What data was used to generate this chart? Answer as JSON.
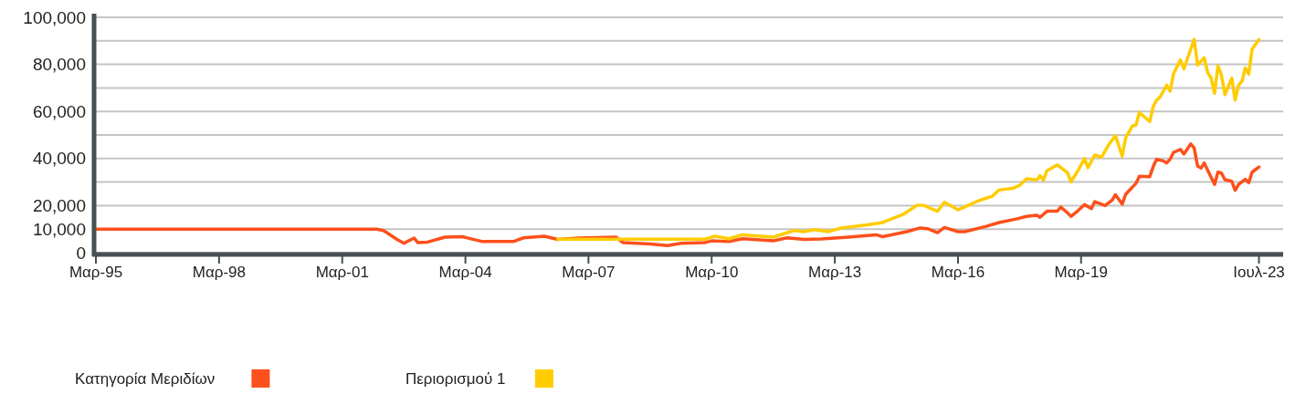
{
  "chart_data": {
    "type": "line",
    "xlim": [
      "1995-03",
      "2024-02"
    ],
    "xticks": [
      {
        "value": "1995-03",
        "label": "Μαρ-95"
      },
      {
        "value": "1998-03",
        "label": "Μαρ-98"
      },
      {
        "value": "2001-03",
        "label": "Μαρ-01"
      },
      {
        "value": "2004-03",
        "label": "Μαρ-04"
      },
      {
        "value": "2007-03",
        "label": "Μαρ-07"
      },
      {
        "value": "2010-03",
        "label": "Μαρ-10"
      },
      {
        "value": "2013-03",
        "label": "Μαρ-13"
      },
      {
        "value": "2016-03",
        "label": "Μαρ-16"
      },
      {
        "value": "2019-03",
        "label": "Μαρ-19"
      },
      {
        "value": "2023-07",
        "label": "Ιουλ-23"
      }
    ],
    "ylim": [
      0,
      100000
    ],
    "yticks": [
      {
        "value": 0,
        "label": "0"
      },
      {
        "value": 10000,
        "label": "10,000"
      },
      {
        "value": 20000,
        "label": "20,000"
      },
      {
        "value": 30000,
        "label": null
      },
      {
        "value": 40000,
        "label": "40,000"
      },
      {
        "value": 50000,
        "label": null
      },
      {
        "value": 60000,
        "label": "60,000"
      },
      {
        "value": 70000,
        "label": null
      },
      {
        "value": 80000,
        "label": "80,000"
      },
      {
        "value": 90000,
        "label": null
      },
      {
        "value": 100000,
        "label": "100,000"
      }
    ],
    "grid": "y",
    "legend": "bottom left",
    "marker": "none",
    "line_style": "solid",
    "series": [
      {
        "name": "Κατηγορία Μεριδίων",
        "color": "#fc501c",
        "x": [
          "1995-03",
          "2002-01",
          "2002-03",
          "2002-04",
          "2002-07",
          "2002-09",
          "2002-12",
          "2003-01",
          "2003-04",
          "2003-09",
          "2004-02",
          "2004-08",
          "2005-05",
          "2005-08",
          "2006-02",
          "2006-06",
          "2006-12",
          "2007-11",
          "2008-01",
          "2008-09",
          "2009-02",
          "2009-06",
          "2010-01",
          "2010-03",
          "2010-08",
          "2010-12",
          "2011-09",
          "2012-01",
          "2012-06",
          "2012-11",
          "2013-07",
          "2014-03",
          "2014-05",
          "2014-12",
          "2015-04",
          "2015-06",
          "2015-09",
          "2015-11",
          "2016-03",
          "2016-05",
          "2016-11",
          "2017-03",
          "2017-08",
          "2017-11",
          "2018-02",
          "2018-03",
          "2018-05",
          "2018-08",
          "2018-09",
          "2018-11",
          "2018-12",
          "2019-02",
          "2019-04",
          "2019-06",
          "2019-07",
          "2019-10",
          "2019-12",
          "2020-01",
          "2020-03",
          "2020-04",
          "2020-07",
          "2020-08",
          "2020-11",
          "2020-12",
          "2021-01",
          "2021-03",
          "2021-04",
          "2021-05",
          "2021-06",
          "2021-08",
          "2021-09",
          "2021-11",
          "2021-12",
          "2022-01",
          "2022-02",
          "2022-03",
          "2022-06",
          "2022-07",
          "2022-08",
          "2022-09",
          "2022-11",
          "2022-12",
          "2023-01",
          "2023-03",
          "2023-04",
          "2023-05",
          "2023-07"
        ],
        "values": [
          10000,
          10000,
          9400,
          8500,
          5600,
          4000,
          6200,
          4300,
          4500,
          6600,
          6800,
          4700,
          4700,
          6300,
          7000,
          5600,
          6200,
          6600,
          4300,
          3700,
          3000,
          4000,
          4300,
          5000,
          4700,
          5900,
          5000,
          6300,
          5600,
          5800,
          6600,
          7600,
          6800,
          8900,
          10500,
          10200,
          8500,
          10700,
          8900,
          8900,
          11100,
          12800,
          14300,
          15400,
          15900,
          15000,
          17600,
          17600,
          19300,
          16900,
          15400,
          17800,
          20400,
          18700,
          21700,
          20000,
          22200,
          24600,
          20600,
          24800,
          29400,
          32500,
          32300,
          36400,
          39700,
          39000,
          38100,
          39700,
          42600,
          43900,
          41900,
          46200,
          44500,
          36800,
          35900,
          38100,
          29000,
          34200,
          33800,
          31000,
          30300,
          26500,
          29000,
          31200,
          29700,
          34200,
          36400
        ]
      },
      {
        "name": "Περιορισμού 1",
        "color": "#ffcc00",
        "x": [
          "2006-06",
          "2010-01",
          "2010-04",
          "2010-08",
          "2010-12",
          "2011-09",
          "2012-03",
          "2012-06",
          "2012-09",
          "2013-01",
          "2013-05",
          "2013-12",
          "2014-05",
          "2014-11",
          "2015-03",
          "2015-05",
          "2015-09",
          "2015-11",
          "2016-03",
          "2016-06",
          "2016-09",
          "2017-01",
          "2017-03",
          "2017-07",
          "2017-09",
          "2017-11",
          "2018-02",
          "2018-03",
          "2018-04",
          "2018-05",
          "2018-08",
          "2018-11",
          "2018-12",
          "2019-02",
          "2019-04",
          "2019-05",
          "2019-07",
          "2019-09",
          "2019-10",
          "2019-11",
          "2020-01",
          "2020-03",
          "2020-04",
          "2020-06",
          "2020-07",
          "2020-08",
          "2020-11",
          "2020-12",
          "2021-01",
          "2021-02",
          "2021-04",
          "2021-05",
          "2021-06",
          "2021-08",
          "2021-09",
          "2021-12",
          "2022-01",
          "2022-03",
          "2022-04",
          "2022-05",
          "2022-06",
          "2022-07",
          "2022-08",
          "2022-09",
          "2022-11",
          "2022-12",
          "2023-01",
          "2023-02",
          "2023-03",
          "2023-04",
          "2023-05",
          "2023-07"
        ],
        "values": [
          5700,
          5700,
          7000,
          5900,
          7600,
          6600,
          9400,
          8900,
          9800,
          8900,
          10500,
          11700,
          12800,
          16300,
          20100,
          20100,
          17600,
          21400,
          18200,
          20100,
          22100,
          24000,
          26600,
          27300,
          28600,
          31400,
          30900,
          32700,
          30900,
          34800,
          37300,
          34000,
          30100,
          34800,
          40000,
          36100,
          41500,
          40600,
          43200,
          45800,
          49700,
          41000,
          48800,
          53900,
          54200,
          59600,
          55700,
          61900,
          64800,
          66100,
          71200,
          68600,
          76100,
          81900,
          78100,
          90600,
          79700,
          82800,
          76400,
          74200,
          67700,
          79400,
          75500,
          67100,
          74200,
          64800,
          71200,
          72900,
          78500,
          75900,
          86500,
          90600
        ]
      }
    ]
  }
}
